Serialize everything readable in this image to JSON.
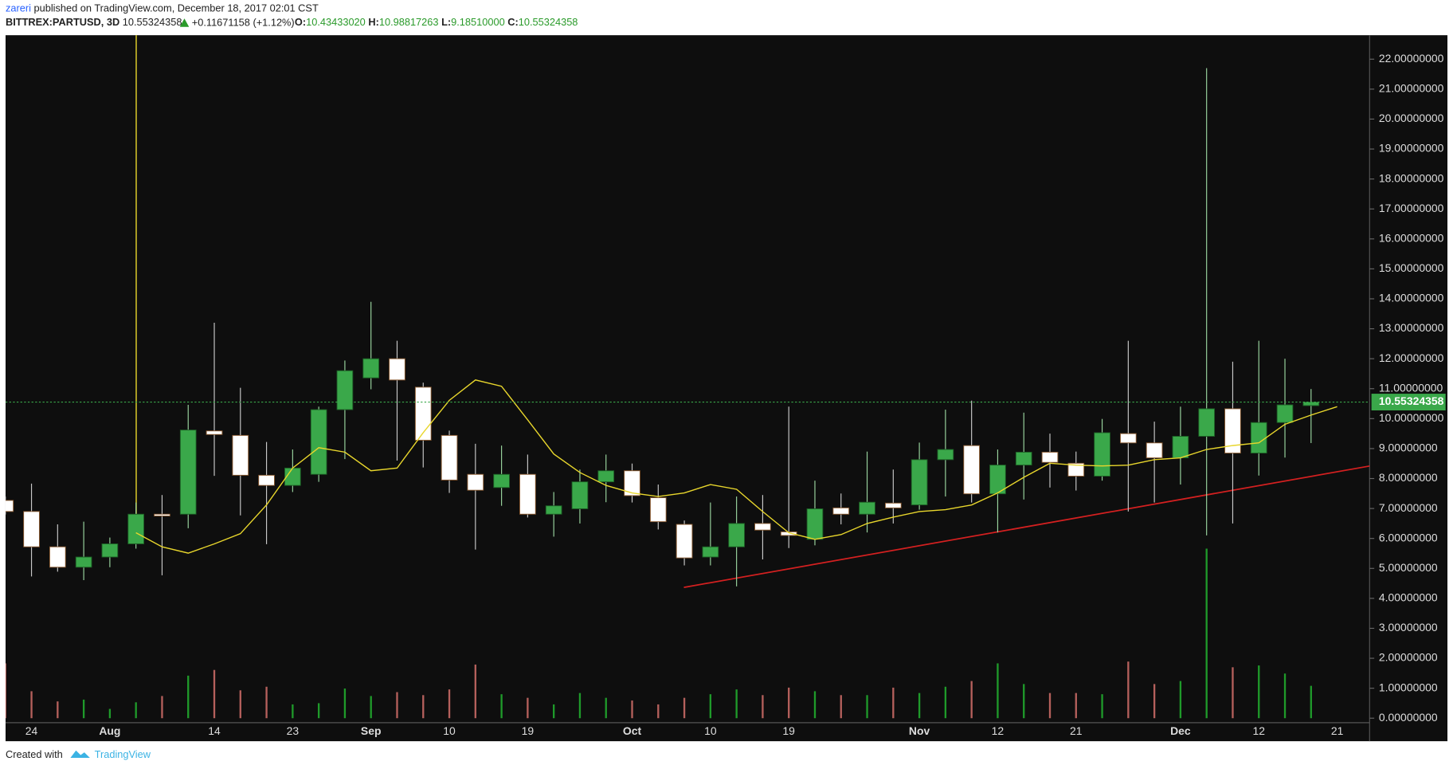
{
  "header": {
    "author": "zareri",
    "published": "published on TradingView.com, December 18, 2017 02:01 CST",
    "symbol": "BITTREX:PARTUSD, 3D",
    "price": "10.55324358",
    "change": "+0.11671158 (+1.12%)",
    "ohlc": [
      {
        "label": "O:",
        "value": "10.43433020"
      },
      {
        "label": "H:",
        "value": "10.98817263"
      },
      {
        "label": "L:",
        "value": "9.18510000"
      },
      {
        "label": "C:",
        "value": "10.55324358"
      }
    ]
  },
  "footer": {
    "created": "Created with",
    "brand": "TradingView"
  },
  "chart_data": {
    "type": "candlestick",
    "categories": [
      null,
      "24",
      null,
      null,
      "Aug",
      null,
      null,
      null,
      "14",
      null,
      null,
      "23",
      null,
      null,
      "Sep",
      null,
      null,
      "10",
      null,
      null,
      "19",
      null,
      null,
      null,
      "Oct",
      null,
      null,
      "10",
      null,
      null,
      "19",
      null,
      null,
      null,
      null,
      "Nov",
      null,
      null,
      "12",
      null,
      null,
      "21",
      null,
      null,
      null,
      "Dec",
      null,
      null,
      "12",
      null,
      null,
      "21"
    ],
    "open": [
      7.27,
      6.9,
      5.72,
      5.04,
      5.38,
      5.82,
      6.81,
      6.81,
      9.59,
      9.44,
      8.11,
      7.77,
      8.14,
      10.3,
      11.36,
      12.0,
      11.05,
      9.44,
      8.14,
      7.7,
      8.14,
      6.81,
      6.99,
      7.89,
      8.26,
      7.36,
      6.47,
      5.38,
      5.72,
      6.5,
      6.22,
      5.97,
      7.02,
      6.81,
      7.18,
      7.12,
      8.63,
      9.1,
      7.49,
      8.45,
      8.88,
      8.51,
      8.08,
      9.5,
      9.19,
      8.69,
      9.41,
      10.33,
      8.85,
      9.87,
      10.4343302,
      null
    ],
    "high": [
      7.4,
      7.83,
      6.47,
      6.56,
      6.03,
      7.2,
      7.45,
      10.46,
      13.2,
      11.03,
      9.22,
      8.97,
      10.4,
      11.94,
      13.9,
      12.6,
      11.2,
      9.6,
      9.16,
      9.1,
      8.8,
      7.55,
      8.3,
      8.8,
      8.5,
      7.8,
      6.6,
      7.2,
      7.4,
      7.45,
      10.4,
      7.93,
      7.5,
      8.9,
      8.3,
      9.2,
      10.3,
      10.6,
      8.97,
      10.2,
      9.5,
      8.9,
      9.99,
      12.6,
      9.9,
      10.4,
      21.7,
      11.9,
      12.6,
      12.0,
      10.98817263,
      null
    ],
    "low": [
      6.8,
      4.73,
      4.89,
      4.61,
      5.04,
      5.66,
      4.77,
      6.34,
      8.09,
      6.77,
      5.81,
      7.55,
      7.89,
      8.65,
      10.98,
      8.6,
      8.37,
      7.52,
      5.63,
      7.09,
      6.7,
      6.06,
      6.5,
      7.21,
      7.2,
      6.3,
      5.1,
      5.1,
      4.4,
      5.3,
      5.68,
      5.77,
      6.47,
      6.2,
      6.5,
      6.96,
      7.4,
      7.2,
      6.2,
      7.3,
      7.7,
      7.6,
      7.93,
      6.9,
      7.2,
      7.8,
      6.1,
      6.5,
      8.1,
      8.7,
      9.1851,
      null
    ],
    "close": [
      6.9,
      5.72,
      5.04,
      5.38,
      5.82,
      6.81,
      6.75,
      9.62,
      9.47,
      8.11,
      7.77,
      8.35,
      10.3,
      11.6,
      12.0,
      11.29,
      9.28,
      7.95,
      7.61,
      8.14,
      6.81,
      7.09,
      7.89,
      8.26,
      7.43,
      6.56,
      5.35,
      5.72,
      6.5,
      6.28,
      6.1,
      6.99,
      6.81,
      7.21,
      7.02,
      8.63,
      8.97,
      7.49,
      8.45,
      8.88,
      8.54,
      8.08,
      9.53,
      9.19,
      8.69,
      9.41,
      10.33,
      8.85,
      9.87,
      10.46,
      10.55324358,
      null
    ],
    "volume": [
      1.83,
      0.9,
      0.56,
      0.62,
      0.31,
      0.53,
      0.74,
      1.42,
      1.61,
      0.93,
      1.05,
      0.46,
      0.5,
      0.99,
      0.74,
      0.87,
      0.77,
      0.96,
      1.79,
      0.8,
      0.68,
      0.46,
      0.84,
      0.68,
      0.59,
      0.46,
      0.68,
      0.8,
      0.96,
      0.77,
      1.02,
      0.9,
      0.77,
      0.77,
      1.02,
      0.84,
      1.05,
      1.24,
      1.83,
      1.14,
      0.84,
      0.84,
      0.8,
      1.89,
      1.14,
      1.24,
      5.66,
      1.7,
      1.76,
      1.49,
      1.08,
      null
    ],
    "moving_average": {
      "color": "#e8d62c",
      "values": [
        null,
        null,
        null,
        null,
        null,
        6.19,
        5.72,
        5.51,
        5.82,
        6.16,
        7.12,
        8.35,
        9.03,
        8.88,
        8.26,
        8.35,
        9.53,
        10.61,
        11.29,
        11.08,
        9.96,
        8.82,
        8.2,
        7.77,
        7.52,
        7.4,
        7.52,
        7.8,
        7.64,
        6.9,
        6.19,
        5.97,
        6.13,
        6.5,
        6.71,
        6.9,
        6.96,
        7.12,
        7.52,
        8.04,
        8.51,
        8.45,
        8.42,
        8.45,
        8.63,
        8.69,
        8.97,
        9.1,
        9.19,
        9.81,
        10.12,
        10.4
      ]
    },
    "up_color": "#3aa84a",
    "down_color": "#ffffff",
    "volume_up_color": "#1f9a2a",
    "volume_down_color": "#b5605c",
    "ylim": [
      -0.15,
      22.8
    ],
    "yticks": [
      {
        "value": 0,
        "label": "0.00000000"
      },
      {
        "value": 1,
        "label": "1.00000000"
      },
      {
        "value": 2,
        "label": "2.00000000"
      },
      {
        "value": 3,
        "label": "3.00000000"
      },
      {
        "value": 4,
        "label": "4.00000000"
      },
      {
        "value": 5,
        "label": "5.00000000"
      },
      {
        "value": 6,
        "label": "6.00000000"
      },
      {
        "value": 7,
        "label": "7.00000000"
      },
      {
        "value": 8,
        "label": "8.00000000"
      },
      {
        "value": 9,
        "label": "9.00000000"
      },
      {
        "value": 10,
        "label": "10.00000000"
      },
      {
        "value": 11,
        "label": "11.00000000"
      },
      {
        "value": 12,
        "label": "12.00000000"
      },
      {
        "value": 13,
        "label": "13.00000000"
      },
      {
        "value": 14,
        "label": "14.00000000"
      },
      {
        "value": 15,
        "label": "15.00000000"
      },
      {
        "value": 16,
        "label": "16.00000000"
      },
      {
        "value": 17,
        "label": "17.00000000"
      },
      {
        "value": 18,
        "label": "18.00000000"
      },
      {
        "value": 19,
        "label": "19.00000000"
      },
      {
        "value": 20,
        "label": "20.00000000"
      },
      {
        "value": 21,
        "label": "21.00000000"
      },
      {
        "value": 22,
        "label": "22.00000000"
      }
    ],
    "grid": false
  }
}
